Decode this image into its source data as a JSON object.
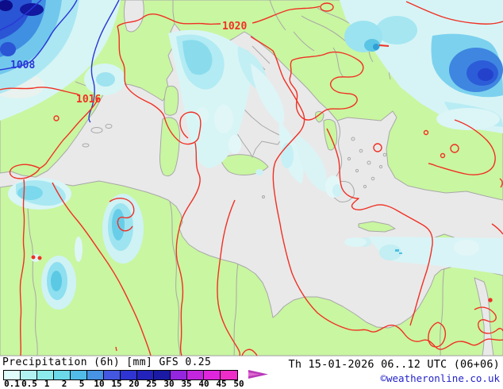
{
  "legend": {
    "title": "Precipitation (6h) [mm] GFS 0.25",
    "scale_labels": [
      "0.1",
      "0.5",
      "1",
      "2",
      "5",
      "10",
      "15",
      "20",
      "25",
      "30",
      "35",
      "40",
      "45",
      "50"
    ],
    "scale_colors": [
      "#e0fbfb",
      "#b2f1f1",
      "#8deaec",
      "#6cd9e8",
      "#52bce8",
      "#4793e4",
      "#4457e0",
      "#2e35d2",
      "#2323bc",
      "#1a1aa4",
      "#9426e0",
      "#c426e0",
      "#e026dc",
      "#ee2cc8"
    ],
    "arrow_color": "#b838b8"
  },
  "footer": {
    "datetime": "Th 15-01-2026 06..12 UTC (06+06)",
    "copyright": "©weatheronline.co.uk"
  },
  "map": {
    "pressure_labels": [
      {
        "text": "1008",
        "color": "#2937d8"
      },
      {
        "text": "1016",
        "color": "#f03024"
      },
      {
        "text": "1020",
        "color": "#f03024"
      }
    ],
    "colors": {
      "land": "#c9f6a0",
      "sea": "#e9e9e9",
      "coast": "#a0a0a0",
      "isobar_low": "#2937d8",
      "isobar_high": "#f03024"
    }
  }
}
